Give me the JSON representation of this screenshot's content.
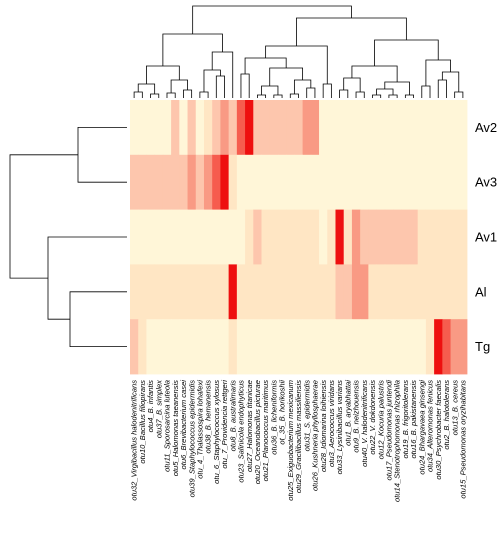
{
  "chart_data": {
    "type": "heatmap",
    "rows": [
      "Av2",
      "Av3",
      "Av1",
      "Al",
      "Tg"
    ],
    "columns": [
      "otu32_Virgibacillus halodenitrificans",
      "otu10_Bacillus filiopirans",
      "otu4_B. infantis",
      "otu37_B. simplex",
      "otu11_Sporosarcina luteola",
      "otu5_Halomonas taeanensis",
      "otu6_Brevibacterium casei",
      "otu39_Staphylococcus epidermidis",
      "otu_4_Thalassospira lohafexi",
      "otu38_B. hemanensis",
      "otu_6_Staphylococcus xylosus",
      "otu_7_Providencia rettgeri",
      "otu8_B. australimaris",
      "otu23_Salinicola endophyticus",
      "otu27_Halomonas titanicae",
      "otu20_Oceanobacillus picturae",
      "otu21_Planococcus maritimus",
      "otu36_B. licheniformis",
      "ot_35_B. horikoshii",
      "otu25_Exiguobacterium mexicanum",
      "otu29_Gracilibacillus massiliensis",
      "otu31_S. epidermidis",
      "otu26_Kushneria phyllosphaerae",
      "otu28_Idiomarina loihiensis",
      "otu3_Aerococcus viridans",
      "otu33_Lysinibacillus varians",
      "otu1_B. aryabhattai",
      "otu9_B. neizhouensis",
      "otu40_V. halodenitrificans",
      "otu22_V. dokdonensis",
      "otu12_Kocuria palustris",
      "otu17_Pseudomonas juntendi",
      "otu14_Stenotrophomonas rhizophila",
      "otu19_B. frigoritolerans",
      "otu16_B. pakistanensis",
      "otu24_Bhargavaea ginsengi",
      "otu34_Alteromonas fenicus",
      "otu30_Psychrobacter faecalis",
      "otu2_B. halotolerans",
      "otu13_B. cereus",
      "otu15_Pseudomonas oryzihabitans"
    ],
    "values": [
      [
        0,
        0,
        0,
        0,
        0,
        2,
        0,
        2,
        0,
        1,
        2,
        3,
        2,
        4,
        5,
        2,
        2,
        2,
        2,
        2,
        2,
        3,
        3,
        0,
        0,
        0,
        0,
        0,
        0,
        0,
        0,
        0,
        0,
        0,
        0,
        0,
        0,
        0,
        0,
        0,
        0
      ],
      [
        2,
        2,
        2,
        2,
        2,
        2,
        2,
        3,
        2,
        3,
        4,
        5,
        1,
        0,
        0,
        0,
        0,
        0,
        0,
        0,
        0,
        0,
        0,
        0,
        0,
        0,
        0,
        0,
        0,
        0,
        0,
        0,
        0,
        0,
        0,
        0,
        0,
        0,
        0,
        0,
        0
      ],
      [
        0,
        0,
        0,
        0,
        0,
        0,
        0,
        0,
        0,
        0,
        0,
        0,
        0,
        0,
        1,
        2,
        1,
        1,
        1,
        1,
        1,
        1,
        1,
        0,
        1,
        5,
        1,
        3,
        2,
        2,
        2,
        2,
        2,
        2,
        2,
        1,
        1,
        1,
        1,
        1,
        1
      ],
      [
        1,
        1,
        1,
        1,
        1,
        1,
        1,
        1,
        1,
        1,
        1,
        1,
        5,
        1,
        1,
        1,
        1,
        1,
        1,
        1,
        1,
        1,
        1,
        1,
        1,
        2,
        2,
        3,
        3,
        1,
        1,
        1,
        1,
        1,
        1,
        1,
        1,
        1,
        1,
        1,
        1
      ],
      [
        2,
        1,
        0,
        0,
        0,
        0,
        0,
        0,
        0,
        0,
        0,
        0,
        1,
        0,
        0,
        0,
        0,
        0,
        0,
        0,
        0,
        0,
        0,
        0,
        0,
        0,
        0,
        0,
        0,
        0,
        0,
        0,
        0,
        0,
        0,
        0,
        1,
        5,
        4,
        3,
        3
      ]
    ],
    "color_scale": [
      "#fff6d8",
      "#ffe6c4",
      "#fdc6ad",
      "#f99a84",
      "#f65c4e",
      "#ee0f0f"
    ],
    "row_dendrogram": true,
    "column_dendrogram": true,
    "legend": "none"
  }
}
